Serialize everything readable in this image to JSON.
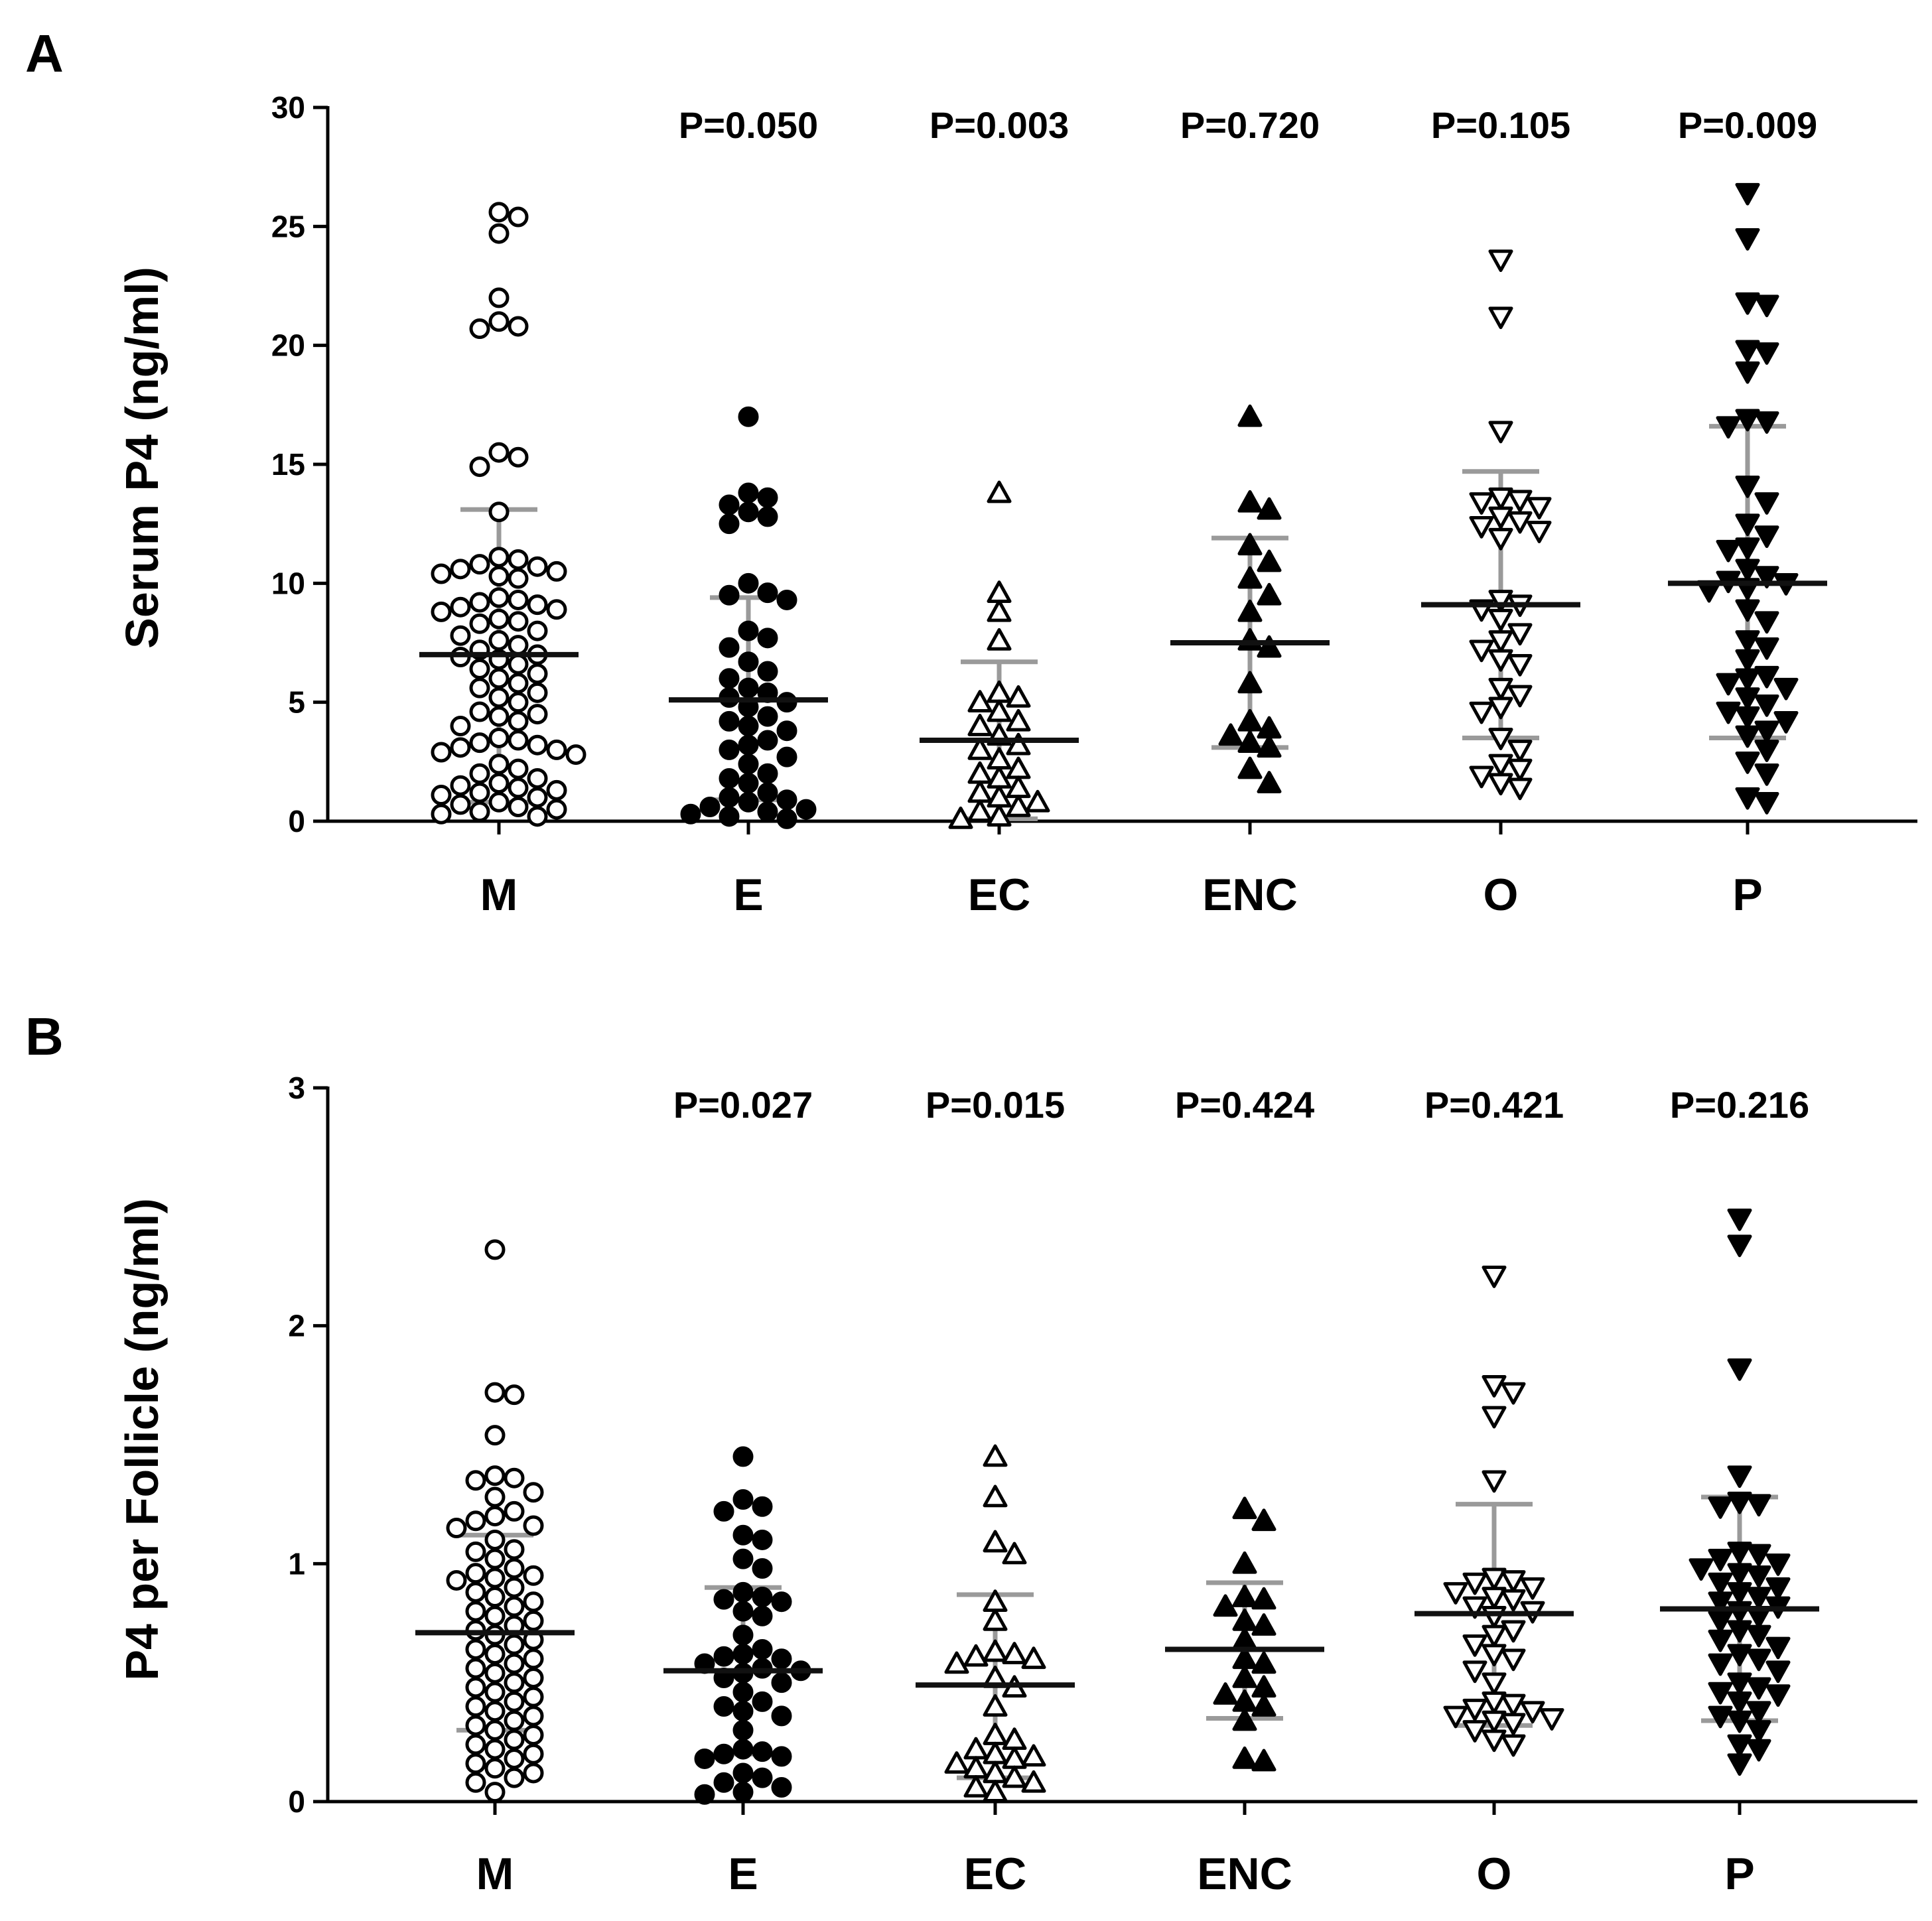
{
  "chart_data": [
    {
      "panel": "A",
      "type": "scatter",
      "ylabel": "Serum P4 (ng/ml)",
      "xlabel": "",
      "ylim": [
        0,
        30
      ],
      "yticks": [
        "0",
        "5",
        "10",
        "15",
        "20",
        "25",
        "30"
      ],
      "categories": [
        "M",
        "E",
        "EC",
        "ENC",
        "O",
        "P"
      ],
      "pvalues": [
        "",
        "P=0.050",
        "P=0.003",
        "P=0.720",
        "P=0.105",
        "P=0.009"
      ],
      "groups": [
        {
          "name": "M",
          "marker": "circle-open",
          "mean": 7.0,
          "sd_low": 0.8,
          "sd_high": 13.1,
          "values": [
            25.6,
            25.4,
            24.7,
            22.0,
            21.0,
            20.8,
            20.7,
            15.5,
            15.3,
            14.9,
            13.0,
            11.1,
            11.0,
            10.8,
            10.7,
            10.6,
            10.5,
            10.4,
            10.3,
            10.2,
            9.4,
            9.3,
            9.2,
            9.1,
            9.0,
            8.9,
            8.8,
            8.5,
            8.4,
            8.3,
            8.0,
            7.8,
            7.6,
            7.4,
            7.2,
            7.0,
            6.9,
            6.8,
            6.6,
            6.4,
            6.2,
            6.0,
            5.8,
            5.6,
            5.4,
            5.2,
            5.0,
            4.6,
            4.5,
            4.4,
            4.2,
            4.0,
            3.5,
            3.4,
            3.3,
            3.2,
            3.1,
            3.0,
            2.9,
            2.8,
            2.4,
            2.2,
            2.0,
            1.8,
            1.6,
            1.5,
            1.4,
            1.3,
            1.2,
            1.1,
            1.0,
            0.8,
            0.7,
            0.6,
            0.5,
            0.4,
            0.3,
            0.2
          ]
        },
        {
          "name": "E",
          "marker": "circle-filled",
          "mean": 5.1,
          "sd_low": 0.9,
          "sd_high": 9.4,
          "values": [
            17.0,
            13.8,
            13.6,
            13.3,
            13.0,
            12.8,
            12.5,
            10.0,
            9.6,
            9.5,
            9.3,
            8.0,
            7.7,
            7.3,
            6.7,
            6.3,
            6.0,
            5.6,
            5.4,
            5.2,
            5.0,
            4.8,
            4.4,
            4.2,
            4.0,
            3.8,
            3.4,
            3.2,
            3.0,
            2.7,
            2.4,
            2.0,
            1.8,
            1.6,
            1.2,
            1.0,
            0.9,
            0.8,
            0.6,
            0.5,
            0.4,
            0.3,
            0.2,
            0.1
          ]
        },
        {
          "name": "EC",
          "marker": "triangle-up-open",
          "mean": 3.4,
          "sd_low": 0.1,
          "sd_high": 6.7,
          "values": [
            13.8,
            9.6,
            8.8,
            7.6,
            5.4,
            5.2,
            5.0,
            4.6,
            4.2,
            4.0,
            3.6,
            3.2,
            3.0,
            2.6,
            2.2,
            2.0,
            1.8,
            1.4,
            1.2,
            1.0,
            0.8,
            0.6,
            0.4,
            0.2,
            0.1
          ]
        },
        {
          "name": "ENC",
          "marker": "triangle-up-filled",
          "mean": 7.5,
          "sd_low": 3.1,
          "sd_high": 11.9,
          "values": [
            17.0,
            13.4,
            13.1,
            11.6,
            10.9,
            10.2,
            9.5,
            8.8,
            7.6,
            7.3,
            5.8,
            4.2,
            3.9,
            3.6,
            3.3,
            3.1,
            2.2,
            1.6
          ]
        },
        {
          "name": "O",
          "marker": "triangle-down-open",
          "mean": 9.1,
          "sd_low": 3.5,
          "sd_high": 14.7,
          "values": [
            23.6,
            21.2,
            16.4,
            13.6,
            13.5,
            13.4,
            13.2,
            12.8,
            12.6,
            12.4,
            12.2,
            11.9,
            9.3,
            9.1,
            8.9,
            8.5,
            7.9,
            7.6,
            7.2,
            6.8,
            6.6,
            5.6,
            5.3,
            4.8,
            4.6,
            3.5,
            3.0,
            2.4,
            2.2,
            1.9,
            1.6,
            1.4
          ]
        },
        {
          "name": "P",
          "marker": "triangle-down-filled",
          "mean": 10.0,
          "sd_low": 3.5,
          "sd_high": 16.6,
          "values": [
            26.4,
            24.5,
            21.8,
            21.7,
            19.8,
            19.7,
            18.9,
            16.9,
            16.8,
            16.6,
            14.1,
            13.4,
            12.5,
            12.0,
            11.5,
            11.4,
            10.6,
            10.3,
            10.1,
            10.0,
            9.8,
            9.7,
            8.9,
            8.4,
            7.6,
            7.3,
            6.8,
            6.1,
            6.0,
            5.8,
            5.6,
            5.2,
            4.9,
            4.6,
            4.4,
            4.2,
            3.8,
            3.6,
            3.0,
            2.5,
            2.0,
            1.0,
            0.8
          ]
        }
      ]
    },
    {
      "panel": "B",
      "type": "scatter",
      "ylabel": "P4 per Follicle (ng/ml)",
      "xlabel": "",
      "ylim": [
        0,
        3
      ],
      "yticks": [
        "0",
        "1",
        "2",
        "3"
      ],
      "categories": [
        "M",
        "E",
        "EC",
        "ENC",
        "O",
        "P"
      ],
      "pvalues": [
        "",
        "P=0.027",
        "P=0.015",
        "P=0.424",
        "P=0.421",
        "P=0.216"
      ],
      "groups": [
        {
          "name": "M",
          "marker": "circle-open",
          "mean": 0.71,
          "sd_low": 0.3,
          "sd_high": 1.12,
          "values": [
            2.32,
            1.72,
            1.71,
            1.54,
            1.37,
            1.36,
            1.35,
            1.3,
            1.28,
            1.22,
            1.2,
            1.18,
            1.16,
            1.15,
            1.1,
            1.06,
            1.05,
            1.02,
            0.98,
            0.96,
            0.95,
            0.94,
            0.93,
            0.9,
            0.88,
            0.86,
            0.84,
            0.82,
            0.8,
            0.78,
            0.76,
            0.74,
            0.72,
            0.7,
            0.68,
            0.66,
            0.64,
            0.62,
            0.6,
            0.58,
            0.56,
            0.54,
            0.52,
            0.5,
            0.48,
            0.46,
            0.44,
            0.42,
            0.4,
            0.38,
            0.36,
            0.34,
            0.32,
            0.3,
            0.28,
            0.26,
            0.24,
            0.22,
            0.2,
            0.18,
            0.16,
            0.14,
            0.12,
            0.1,
            0.08,
            0.04
          ]
        },
        {
          "name": "E",
          "marker": "circle-filled",
          "mean": 0.55,
          "sd_low": 0.2,
          "sd_high": 0.9,
          "values": [
            1.45,
            1.27,
            1.24,
            1.22,
            1.12,
            1.1,
            1.02,
            0.98,
            0.88,
            0.86,
            0.85,
            0.84,
            0.8,
            0.78,
            0.7,
            0.64,
            0.62,
            0.61,
            0.6,
            0.58,
            0.56,
            0.55,
            0.54,
            0.52,
            0.5,
            0.46,
            0.42,
            0.4,
            0.38,
            0.36,
            0.3,
            0.22,
            0.21,
            0.2,
            0.19,
            0.18,
            0.12,
            0.1,
            0.08,
            0.06,
            0.04,
            0.03
          ]
        },
        {
          "name": "EC",
          "marker": "triangle-up-open",
          "mean": 0.49,
          "sd_low": 0.1,
          "sd_high": 0.87,
          "values": [
            1.45,
            1.28,
            1.09,
            1.04,
            0.84,
            0.76,
            0.63,
            0.62,
            0.61,
            0.6,
            0.58,
            0.52,
            0.48,
            0.4,
            0.28,
            0.26,
            0.22,
            0.2,
            0.19,
            0.18,
            0.16,
            0.14,
            0.12,
            0.1,
            0.08,
            0.06,
            0.04
          ]
        },
        {
          "name": "ENC",
          "marker": "triangle-up-filled",
          "mean": 0.64,
          "sd_low": 0.35,
          "sd_high": 0.92,
          "values": [
            1.23,
            1.18,
            1.0,
            0.86,
            0.85,
            0.82,
            0.76,
            0.74,
            0.68,
            0.6,
            0.58,
            0.52,
            0.48,
            0.45,
            0.42,
            0.4,
            0.34,
            0.18,
            0.17
          ]
        },
        {
          "name": "O",
          "marker": "triangle-down-open",
          "mean": 0.79,
          "sd_low": 0.32,
          "sd_high": 1.25,
          "values": [
            2.21,
            1.75,
            1.72,
            1.62,
            1.35,
            0.94,
            0.93,
            0.92,
            0.9,
            0.88,
            0.86,
            0.85,
            0.82,
            0.8,
            0.78,
            0.72,
            0.7,
            0.66,
            0.62,
            0.6,
            0.55,
            0.5,
            0.42,
            0.41,
            0.39,
            0.38,
            0.36,
            0.35,
            0.34,
            0.33,
            0.3,
            0.26,
            0.24
          ]
        },
        {
          "name": "P",
          "marker": "triangle-down-filled",
          "mean": 0.81,
          "sd_low": 0.34,
          "sd_high": 1.28,
          "values": [
            2.45,
            2.34,
            1.82,
            1.37,
            1.26,
            1.25,
            1.24,
            1.05,
            1.04,
            1.02,
            1.0,
            0.98,
            0.96,
            0.95,
            0.92,
            0.9,
            0.88,
            0.86,
            0.84,
            0.82,
            0.8,
            0.78,
            0.76,
            0.72,
            0.7,
            0.68,
            0.65,
            0.62,
            0.6,
            0.58,
            0.55,
            0.5,
            0.48,
            0.46,
            0.45,
            0.42,
            0.38,
            0.36,
            0.34,
            0.3,
            0.24,
            0.22,
            0.16
          ]
        }
      ]
    }
  ],
  "panels": [
    {
      "letter": "A",
      "ylabel": "Serum P4 (ng/ml)"
    },
    {
      "letter": "B",
      "ylabel": "P4 per Follicle (ng/ml)"
    }
  ],
  "colors": {
    "marker": "#000000",
    "errorbar": "#9a9a9a",
    "meanline": "#111111",
    "axis": "#000000"
  }
}
